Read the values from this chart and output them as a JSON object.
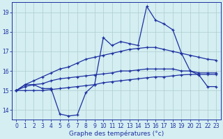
{
  "xlabel": "Graphe des températures (°c)",
  "x": [
    0,
    1,
    2,
    3,
    4,
    5,
    6,
    7,
    8,
    9,
    10,
    11,
    12,
    13,
    14,
    15,
    16,
    17,
    18,
    19,
    20,
    21,
    22,
    23
  ],
  "line_main": [
    15.0,
    15.3,
    15.3,
    15.1,
    15.1,
    13.8,
    13.7,
    13.75,
    14.9,
    15.3,
    17.7,
    17.3,
    17.5,
    17.4,
    17.3,
    19.3,
    18.6,
    18.4,
    18.1,
    16.9,
    16.0,
    15.8,
    15.2,
    15.2
  ],
  "line_upper": [
    15.0,
    15.3,
    15.5,
    15.7,
    15.9,
    16.1,
    16.2,
    16.4,
    16.6,
    16.7,
    16.8,
    16.9,
    17.0,
    17.1,
    17.15,
    17.2,
    17.2,
    17.1,
    17.0,
    16.9,
    16.8,
    16.7,
    16.6,
    16.55
  ],
  "line_mid": [
    15.0,
    15.2,
    15.3,
    15.35,
    15.5,
    15.6,
    15.65,
    15.7,
    15.75,
    15.8,
    15.85,
    15.9,
    16.0,
    16.0,
    16.05,
    16.1,
    16.1,
    16.1,
    16.1,
    16.0,
    16.0,
    15.9,
    15.9,
    15.9
  ],
  "line_lower": [
    15.0,
    15.0,
    15.0,
    15.0,
    15.05,
    15.1,
    15.15,
    15.2,
    15.25,
    15.3,
    15.4,
    15.45,
    15.5,
    15.55,
    15.6,
    15.65,
    15.7,
    15.7,
    15.75,
    15.8,
    15.82,
    15.82,
    15.82,
    15.82
  ],
  "line_color": "#1c2fa0",
  "bg_color": "#d4eef2",
  "grid_color": "#b0cccc",
  "ylim": [
    13.5,
    19.5
  ],
  "yticks": [
    14,
    15,
    16,
    17,
    18,
    19
  ],
  "xticks": [
    0,
    1,
    2,
    3,
    4,
    5,
    6,
    7,
    8,
    9,
    10,
    11,
    12,
    13,
    14,
    15,
    16,
    17,
    18,
    19,
    20,
    21,
    22,
    23
  ]
}
